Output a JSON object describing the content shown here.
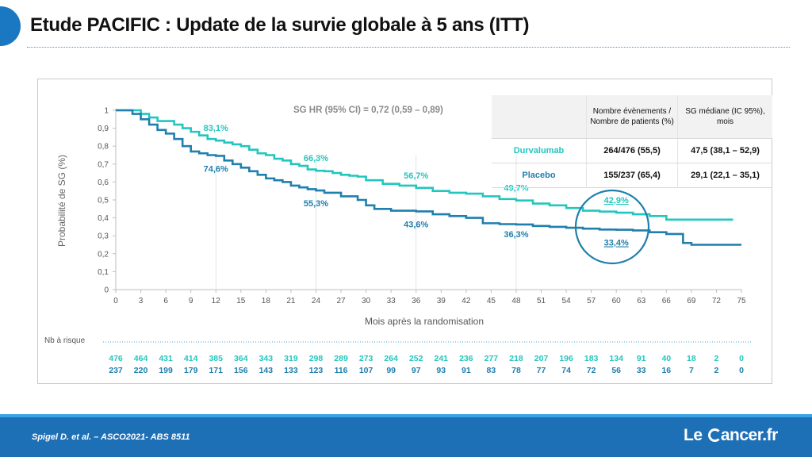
{
  "title": "Etude PACIFIC : Update de la survie globale à 5 ans (ITT)",
  "hr_text": "SG HR (95% CI) = 0,72 (0,59 – 0,89)",
  "footer": {
    "citation": "Spigel D. et al. – ASCO2021- ABS 8511",
    "logo_prefix": "Le",
    "logo_suffix": "ancer.fr"
  },
  "colors": {
    "durvalumab": "#22c6be",
    "placebo": "#1f7fad",
    "accent": "#1d6fb6"
  },
  "table": {
    "headers": [
      "",
      "Nombre évènements / Nombre de patients (%)",
      "SG médiane (IC 95%), mois"
    ],
    "rows": [
      {
        "name": "Durvalumab",
        "events": "264/476 (55,5)",
        "median": "47,5 (38,1 – 52,9)"
      },
      {
        "name": "Placebo",
        "events": "155/237 (65,4)",
        "median": "29,1 (22,1 – 35,1)"
      }
    ]
  },
  "chart_data": {
    "type": "line",
    "xlabel": "Mois après la randomisation",
    "ylabel": "Probabilité de SG (%)",
    "xlim": [
      0,
      75
    ],
    "ylim": [
      0,
      1
    ],
    "x_ticks": [
      "0",
      "3",
      "6",
      "9",
      "12",
      "15",
      "18",
      "21",
      "24",
      "27",
      "30",
      "33",
      "36",
      "39",
      "42",
      "45",
      "48",
      "51",
      "54",
      "57",
      "60",
      "63",
      "66",
      "69",
      "72",
      "75"
    ],
    "y_ticks": [
      "0",
      "0,1",
      "0,2",
      "0,3",
      "0,4",
      "0,5",
      "0,6",
      "0,7",
      "0,8",
      "0,9",
      "1"
    ],
    "series": [
      {
        "name": "Durvalumab",
        "x": [
          0,
          2,
          3,
          4,
          5,
          6,
          7,
          8,
          9,
          10,
          11,
          12,
          13,
          14,
          15,
          16,
          17,
          18,
          19,
          20,
          21,
          22,
          23,
          24,
          25,
          26,
          27,
          28,
          29,
          30,
          32,
          34,
          36,
          38,
          40,
          42,
          44,
          46,
          48,
          50,
          52,
          54,
          56,
          58,
          60,
          62,
          64,
          66,
          68,
          70,
          72,
          74
        ],
        "y": [
          1,
          1,
          0.98,
          0.96,
          0.94,
          0.94,
          0.92,
          0.9,
          0.88,
          0.86,
          0.84,
          0.831,
          0.82,
          0.81,
          0.8,
          0.78,
          0.76,
          0.75,
          0.73,
          0.72,
          0.7,
          0.69,
          0.67,
          0.663,
          0.66,
          0.65,
          0.64,
          0.635,
          0.63,
          0.61,
          0.59,
          0.58,
          0.567,
          0.55,
          0.54,
          0.535,
          0.52,
          0.505,
          0.497,
          0.48,
          0.47,
          0.455,
          0.44,
          0.435,
          0.429,
          0.42,
          0.41,
          0.39,
          0.39,
          0.39,
          0.39,
          0.39
        ]
      },
      {
        "name": "Placebo",
        "x": [
          0,
          1,
          2,
          3,
          4,
          5,
          6,
          7,
          8,
          9,
          10,
          11,
          12,
          13,
          14,
          15,
          16,
          17,
          18,
          19,
          20,
          21,
          22,
          23,
          24,
          25,
          27,
          29,
          30,
          31,
          33,
          36,
          38,
          40,
          42,
          44,
          46,
          48,
          50,
          52,
          54,
          56,
          58,
          60,
          62,
          64,
          66,
          68,
          69,
          72,
          75
        ],
        "y": [
          1,
          1,
          0.98,
          0.95,
          0.92,
          0.89,
          0.87,
          0.84,
          0.8,
          0.77,
          0.76,
          0.75,
          0.746,
          0.72,
          0.7,
          0.68,
          0.66,
          0.64,
          0.62,
          0.61,
          0.6,
          0.58,
          0.57,
          0.56,
          0.553,
          0.54,
          0.52,
          0.5,
          0.47,
          0.45,
          0.44,
          0.436,
          0.42,
          0.41,
          0.4,
          0.37,
          0.365,
          0.363,
          0.355,
          0.35,
          0.345,
          0.34,
          0.335,
          0.334,
          0.33,
          0.32,
          0.31,
          0.26,
          0.25,
          0.25,
          0.25
        ]
      }
    ],
    "annotations": [
      {
        "series": "Durvalumab",
        "x": 12,
        "y": 0.831,
        "text": "83,1%"
      },
      {
        "series": "Durvalumab",
        "x": 24,
        "y": 0.663,
        "text": "66,3%"
      },
      {
        "series": "Durvalumab",
        "x": 36,
        "y": 0.567,
        "text": "56,7%"
      },
      {
        "series": "Durvalumab",
        "x": 48,
        "y": 0.497,
        "text": "49,7%"
      },
      {
        "series": "Durvalumab",
        "x": 60,
        "y": 0.429,
        "text": "42,9%"
      },
      {
        "series": "Placebo",
        "x": 12,
        "y": 0.746,
        "text": "74,6%"
      },
      {
        "series": "Placebo",
        "x": 24,
        "y": 0.553,
        "text": "55,3%"
      },
      {
        "series": "Placebo",
        "x": 36,
        "y": 0.436,
        "text": "43,6%"
      },
      {
        "series": "Placebo",
        "x": 48,
        "y": 0.363,
        "text": "36,3%"
      },
      {
        "series": "Placebo",
        "x": 60,
        "y": 0.334,
        "text": "33,4%"
      }
    ],
    "at_risk": {
      "label": "Nb à risque",
      "durvalumab": [
        476,
        464,
        431,
        414,
        385,
        364,
        343,
        319,
        298,
        289,
        273,
        264,
        252,
        241,
        236,
        277,
        218,
        207,
        196,
        183,
        134,
        91,
        40,
        18,
        2,
        0
      ],
      "placebo": [
        237,
        220,
        199,
        179,
        171,
        156,
        143,
        133,
        123,
        116,
        107,
        99,
        97,
        93,
        91,
        83,
        78,
        77,
        74,
        72,
        56,
        33,
        16,
        7,
        2,
        0
      ]
    },
    "grid": false
  }
}
